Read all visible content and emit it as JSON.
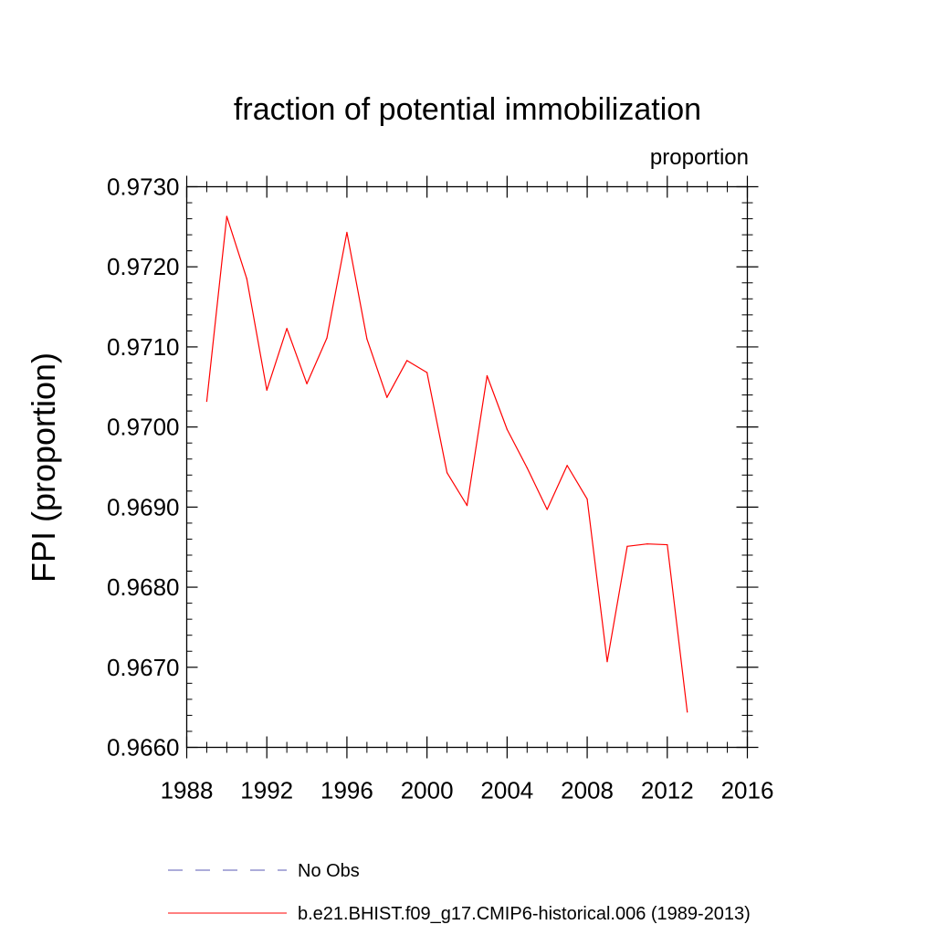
{
  "chart_data": {
    "type": "line",
    "title": "fraction of potential immobilization",
    "units_label": "proportion",
    "xlabel": "",
    "ylabel": "FPI  (proportion)",
    "xlim": [
      1988,
      2016
    ],
    "ylim": [
      0.966,
      0.973
    ],
    "x_ticks": [
      1988,
      1992,
      1996,
      2000,
      2004,
      2008,
      2012,
      2016
    ],
    "x_tick_labels": [
      "1988",
      "1992",
      "1996",
      "2000",
      "2004",
      "2008",
      "2012",
      "2016"
    ],
    "y_ticks": [
      0.966,
      0.967,
      0.968,
      0.969,
      0.97,
      0.971,
      0.972,
      0.973
    ],
    "y_tick_labels": [
      "0.9660",
      "0.9670",
      "0.9680",
      "0.9690",
      "0.9700",
      "0.9710",
      "0.9720",
      "0.9730"
    ],
    "grid": false,
    "legend_position": "bottom",
    "series": [
      {
        "name": "b.e21.BHIST.f09_g17.CMIP6-historical.006 (1989-2013)",
        "color": "#ff0000",
        "style": "solid",
        "x": [
          1989,
          1990,
          1991,
          1992,
          1993,
          1994,
          1995,
          1996,
          1997,
          1998,
          1999,
          2000,
          2001,
          2002,
          2003,
          2004,
          2005,
          2006,
          2007,
          2008,
          2009,
          2010,
          2011,
          2012,
          2013
        ],
        "y": [
          0.97032,
          0.97263,
          0.97185,
          0.97046,
          0.97123,
          0.97054,
          0.97111,
          0.97243,
          0.9711,
          0.97037,
          0.97083,
          0.97068,
          0.96943,
          0.96902,
          0.97064,
          0.96997,
          0.96949,
          0.96897,
          0.96952,
          0.9691,
          0.96707,
          0.96851,
          0.96854,
          0.96853,
          0.96644
        ]
      }
    ],
    "legend": [
      {
        "label": "No Obs",
        "color": "#5a5ab4",
        "style": "dashed"
      },
      {
        "label": "b.e21.BHIST.f09_g17.CMIP6-historical.006 (1989-2013)",
        "color": "#ff0000",
        "style": "solid"
      }
    ]
  }
}
